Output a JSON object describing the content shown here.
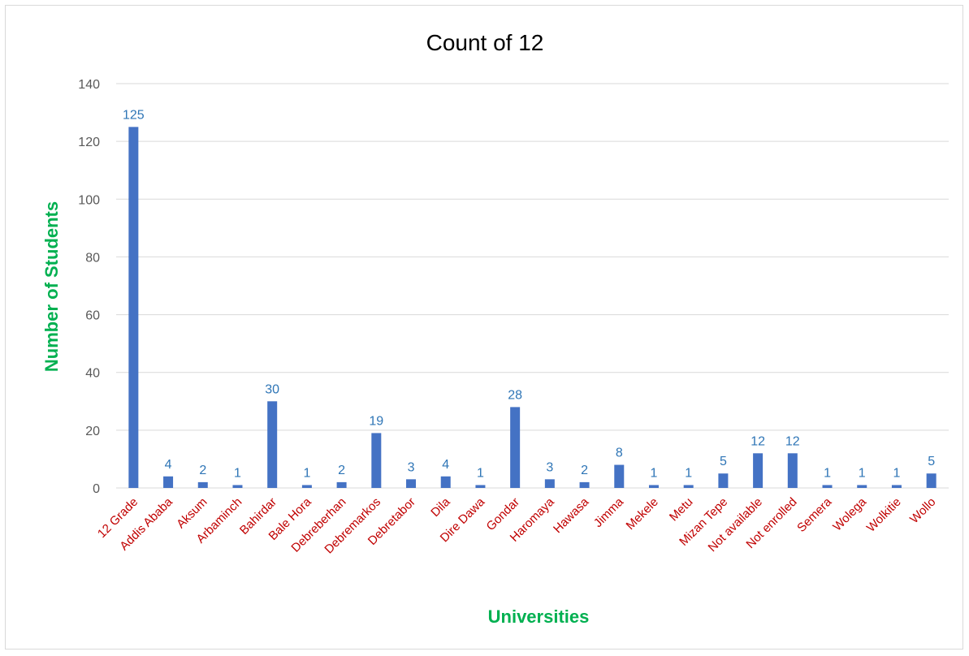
{
  "chart_data": {
    "type": "bar",
    "title": "Count of 12",
    "xlabel": "Universities",
    "ylabel": "Number of Students",
    "categories": [
      "12 Grade",
      "Addis Ababa",
      "Aksum",
      "Arbaminch",
      "Bahirdar",
      "Bale Hora",
      "Debreberhan",
      "Debremarkos",
      "Debretabor",
      "Dila",
      "Dire Dawa",
      "Gondar",
      "Haromaya",
      "Hawasa",
      "Jimma",
      "Mekele",
      "Metu",
      "Mizan Tepe",
      "Not available",
      "Not enrolled",
      "Semera",
      "Wolega",
      "Wolkitie",
      "Wollo"
    ],
    "values": [
      125,
      4,
      2,
      1,
      30,
      1,
      2,
      19,
      3,
      4,
      1,
      28,
      3,
      2,
      8,
      1,
      1,
      5,
      12,
      12,
      1,
      1,
      1,
      5
    ],
    "ylim": [
      0,
      140
    ],
    "yticks": [
      0,
      20,
      40,
      60,
      80,
      100,
      120,
      140
    ],
    "grid": true,
    "legend": "none",
    "data_labels": true
  },
  "colors": {
    "bar": "#4472c4",
    "data_label": "#2e75b6",
    "category_label": "#c00000",
    "axis_title": "#00b050",
    "gridline": "#d9d9d9"
  }
}
